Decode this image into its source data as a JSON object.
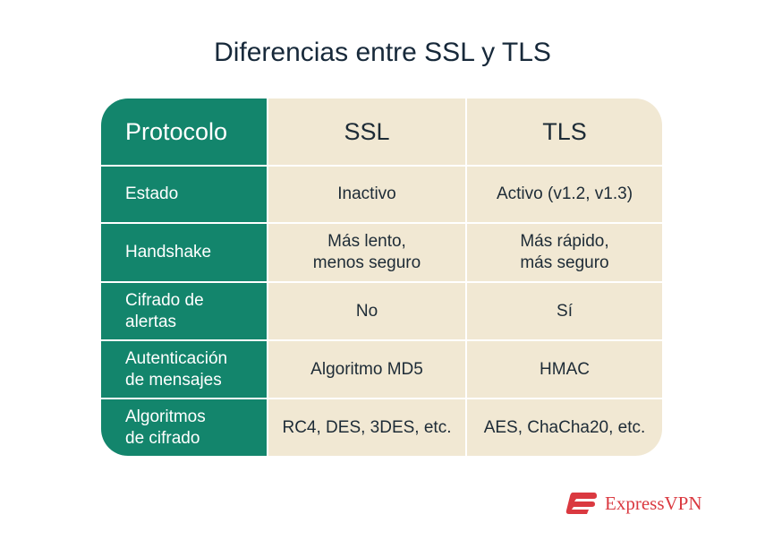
{
  "title": "Diferencias entre SSL y TLS",
  "table": {
    "headers": [
      "Protocolo",
      "SSL",
      "TLS"
    ],
    "rows": [
      [
        "Estado",
        "Inactivo",
        "Activo (v1.2, v1.3)"
      ],
      [
        "Handshake",
        "Más lento,\nmenos seguro",
        "Más rápido,\nmás seguro"
      ],
      [
        "Cifrado de\nalertas",
        "No",
        "Sí"
      ],
      [
        "Autenticación\nde mensajes",
        "Algoritmo MD5",
        "HMAC"
      ],
      [
        "Algoritmos\nde cifrado",
        "RC4, DES, 3DES, etc.",
        "AES, ChaCha20, etc."
      ]
    ]
  },
  "colors": {
    "green": "#13856c",
    "beige": "#f1e8d3",
    "brand_red": "#da3940"
  },
  "brand": "ExpressVPN"
}
